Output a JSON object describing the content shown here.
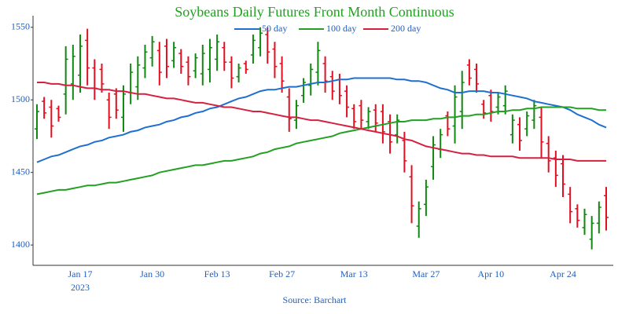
{
  "chart_data": {
    "type": "ohlc",
    "title": "Soybeans Daily Futures Front Month Continuous",
    "source": "Source: Barchart",
    "year_label": "2023",
    "categories": [
      null,
      null,
      null,
      null,
      null,
      null,
      "Jan 17",
      null,
      null,
      null,
      null,
      null,
      null,
      null,
      null,
      null,
      "Jan 30",
      null,
      null,
      null,
      null,
      null,
      null,
      null,
      null,
      "Feb 13",
      null,
      null,
      null,
      null,
      null,
      null,
      null,
      null,
      "Feb 27",
      null,
      null,
      null,
      null,
      null,
      null,
      null,
      null,
      null,
      "Mar 13",
      null,
      null,
      null,
      null,
      null,
      null,
      null,
      null,
      null,
      "Mar 27",
      null,
      null,
      null,
      null,
      null,
      null,
      null,
      null,
      "Apr 10",
      null,
      null,
      null,
      null,
      null,
      null,
      null,
      null,
      null,
      "Apr 24",
      null,
      null,
      null,
      null,
      null,
      null
    ],
    "open": [
      1480,
      1499,
      1495,
      1494,
      1504,
      1511,
      1517,
      1541,
      1522,
      1521,
      1500,
      1504,
      1488,
      1505,
      1509,
      1522,
      1529,
      1534,
      1537,
      1527,
      1532,
      1526,
      1520,
      1518,
      1521,
      1528,
      1536,
      1526,
      1516,
      1525,
      1531,
      1536,
      1545,
      1535,
      1525,
      1502,
      1486,
      1503,
      1510,
      1519,
      1525,
      1516,
      1514,
      1506,
      1494,
      1496,
      1485,
      1493,
      1492,
      1485,
      1476,
      1472,
      1447,
      1413,
      1428,
      1454,
      1466,
      1489,
      1482,
      1492,
      1524,
      1521,
      1497,
      1503,
      1495,
      1496,
      1476,
      1483,
      1480,
      1486,
      1488,
      1470,
      1460,
      1456,
      1435,
      1425,
      1412,
      1404,
      1415,
      1434
    ],
    "high": [
      1497,
      1502,
      1500,
      1496,
      1537,
      1538,
      1545,
      1549,
      1528,
      1525,
      1505,
      1508,
      1510,
      1525,
      1530,
      1538,
      1544,
      1540,
      1542,
      1540,
      1535,
      1530,
      1532,
      1538,
      1542,
      1545,
      1540,
      1530,
      1525,
      1527,
      1545,
      1550,
      1550,
      1540,
      1530,
      1508,
      1500,
      1515,
      1525,
      1540,
      1530,
      1520,
      1518,
      1510,
      1497,
      1500,
      1495,
      1497,
      1497,
      1490,
      1490,
      1478,
      1455,
      1430,
      1445,
      1475,
      1480,
      1492,
      1510,
      1520,
      1528,
      1525,
      1500,
      1507,
      1505,
      1510,
      1490,
      1488,
      1492,
      1500,
      1495,
      1475,
      1465,
      1462,
      1440,
      1428,
      1425,
      1420,
      1430,
      1440
    ],
    "low": [
      1473,
      1487,
      1474,
      1485,
      1490,
      1500,
      1505,
      1510,
      1500,
      1505,
      1480,
      1487,
      1478,
      1497,
      1500,
      1515,
      1523,
      1510,
      1515,
      1522,
      1518,
      1510,
      1515,
      1510,
      1512,
      1520,
      1520,
      1508,
      1512,
      1518,
      1525,
      1530,
      1525,
      1515,
      1505,
      1478,
      1480,
      1498,
      1503,
      1510,
      1505,
      1500,
      1497,
      1488,
      1480,
      1480,
      1480,
      1478,
      1470,
      1463,
      1470,
      1450,
      1415,
      1405,
      1420,
      1445,
      1460,
      1475,
      1470,
      1480,
      1510,
      1505,
      1487,
      1485,
      1490,
      1490,
      1470,
      1465,
      1475,
      1480,
      1460,
      1450,
      1440,
      1433,
      1415,
      1412,
      1407,
      1397,
      1408,
      1410
    ],
    "close": [
      1492,
      1491,
      1482,
      1488,
      1528,
      1530,
      1537,
      1522,
      1508,
      1511,
      1488,
      1493,
      1504,
      1519,
      1524,
      1533,
      1540,
      1519,
      1523,
      1536,
      1523,
      1516,
      1529,
      1532,
      1536,
      1540,
      1526,
      1515,
      1522,
      1521,
      1541,
      1546,
      1533,
      1523,
      1513,
      1487,
      1496,
      1512,
      1521,
      1534,
      1513,
      1506,
      1503,
      1495,
      1485,
      1486,
      1492,
      1484,
      1478,
      1471,
      1486,
      1458,
      1427,
      1425,
      1440,
      1469,
      1476,
      1480,
      1502,
      1512,
      1515,
      1511,
      1491,
      1492,
      1502,
      1506,
      1486,
      1472,
      1489,
      1496,
      1471,
      1458,
      1448,
      1442,
      1423,
      1417,
      1421,
      1415,
      1426,
      1419
    ],
    "up_color": "#118811",
    "down_color": "#e01020",
    "series": [
      {
        "name": "50 day",
        "color": "#1f6fd0",
        "values": [
          1457,
          1459,
          1461,
          1462,
          1464,
          1466,
          1468,
          1469,
          1471,
          1472,
          1474,
          1475,
          1476,
          1478,
          1479,
          1481,
          1482,
          1483,
          1485,
          1486,
          1488,
          1489,
          1491,
          1492,
          1494,
          1495,
          1497,
          1499,
          1501,
          1502,
          1504,
          1506,
          1507,
          1507,
          1508,
          1509,
          1509,
          1510,
          1511,
          1512,
          1512,
          1513,
          1514,
          1514,
          1515,
          1515,
          1515,
          1515,
          1515,
          1515,
          1514,
          1514,
          1513,
          1513,
          1512,
          1510,
          1508,
          1507,
          1505,
          1505,
          1506,
          1506,
          1506,
          1505,
          1505,
          1504,
          1503,
          1502,
          1501,
          1499,
          1498,
          1497,
          1496,
          1495,
          1493,
          1490,
          1488,
          1486,
          1483,
          1481
        ]
      },
      {
        "name": "100 day",
        "color": "#22a022",
        "values": [
          1435,
          1436,
          1437,
          1438,
          1438,
          1439,
          1440,
          1441,
          1441,
          1442,
          1443,
          1443,
          1444,
          1445,
          1446,
          1447,
          1448,
          1450,
          1451,
          1452,
          1453,
          1454,
          1455,
          1455,
          1456,
          1457,
          1458,
          1458,
          1459,
          1460,
          1461,
          1463,
          1464,
          1466,
          1467,
          1468,
          1470,
          1471,
          1472,
          1473,
          1474,
          1475,
          1477,
          1478,
          1479,
          1480,
          1481,
          1482,
          1483,
          1484,
          1485,
          1485,
          1486,
          1486,
          1486,
          1487,
          1487,
          1488,
          1488,
          1489,
          1489,
          1490,
          1490,
          1491,
          1492,
          1492,
          1493,
          1493,
          1494,
          1494,
          1495,
          1495,
          1495,
          1495,
          1495,
          1494,
          1494,
          1494,
          1493,
          1493
        ]
      },
      {
        "name": "200 day",
        "color": "#d62040",
        "values": [
          1512,
          1512,
          1511,
          1511,
          1510,
          1510,
          1509,
          1508,
          1508,
          1507,
          1507,
          1506,
          1506,
          1505,
          1504,
          1504,
          1503,
          1502,
          1501,
          1501,
          1500,
          1499,
          1498,
          1498,
          1497,
          1496,
          1495,
          1495,
          1494,
          1493,
          1492,
          1492,
          1491,
          1490,
          1489,
          1488,
          1488,
          1487,
          1486,
          1486,
          1485,
          1484,
          1483,
          1482,
          1481,
          1480,
          1479,
          1478,
          1477,
          1476,
          1475,
          1473,
          1472,
          1470,
          1468,
          1467,
          1466,
          1465,
          1464,
          1463,
          1463,
          1462,
          1462,
          1461,
          1461,
          1461,
          1461,
          1460,
          1460,
          1460,
          1460,
          1460,
          1459,
          1459,
          1459,
          1458,
          1458,
          1458,
          1458,
          1458
        ]
      }
    ],
    "ylim": [
      1386,
      1558
    ],
    "yticks": [
      1400,
      1450,
      1500,
      1550
    ],
    "grid": false
  }
}
